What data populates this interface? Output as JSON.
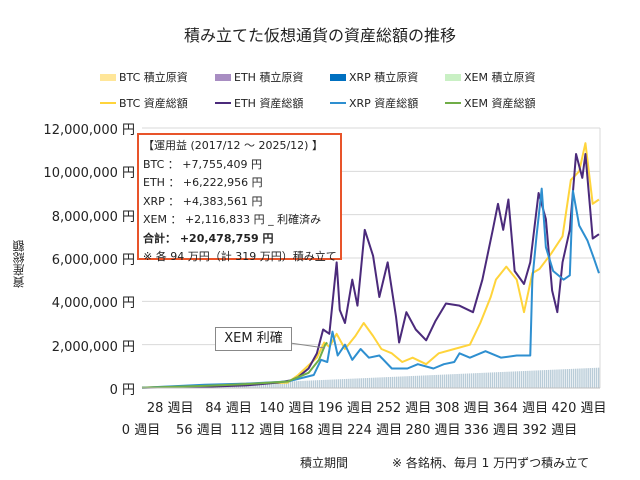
{
  "title": "積み立てた仮想通貨の資産総額の推移",
  "legend": [
    {
      "label": "BTC  積立原資",
      "kind": "bar",
      "color": "#ffe699"
    },
    {
      "label": "ETH  積立原資",
      "kind": "bar",
      "color": "#a88dc2"
    },
    {
      "label": "XRP  積立原資",
      "kind": "bar",
      "color": "#0070c0"
    },
    {
      "label": "XEM  積立原資",
      "kind": "bar",
      "color": "#c9f0c4"
    },
    {
      "label": "BTC  資産総額",
      "kind": "line",
      "color": "#ffd43b"
    },
    {
      "label": "ETH  資産総額",
      "kind": "line",
      "color": "#4b2a7b"
    },
    {
      "label": "XRP  資産総額",
      "kind": "line",
      "color": "#2e8fd0"
    },
    {
      "label": "XEM  資産総額",
      "kind": "line",
      "color": "#70ad47"
    }
  ],
  "annotation": {
    "header": "【運用益 (2017/12 ～ 2025/12) 】",
    "lines": [
      "BTC ： +7,755,409 円",
      "ETH ： +6,222,956 円",
      "XRP ： +4,383,561 円",
      "XEM ： +2,116,833 円 _ 利確済み"
    ],
    "total": "合計： +20,478,759 円",
    "note": "※ 各 94 万円（計 319 万円）積み立て"
  },
  "callout": "XEM 利確",
  "footer": {
    "xlabel": "積立期間",
    "note": "※ 各銘柄、毎月 1 万円ずつ積み立て"
  },
  "chart_data": {
    "type": "line",
    "title": "積み立てた仮想通貨の資産総額の推移",
    "xlabel": "積立期間",
    "ylabel": "資産総額",
    "ylim": [
      0,
      12000000
    ],
    "xlim": [
      0,
      440
    ],
    "grid": true,
    "legend_position": "top",
    "yticks": [
      "0 円",
      "2,000,000 円",
      "4,000,000 円",
      "6,000,000 円",
      "8,000,000 円",
      "10,000,000 円",
      "12,000,000 円"
    ],
    "ytick_values": [
      0,
      2000000,
      4000000,
      6000000,
      8000000,
      10000000,
      12000000
    ],
    "xticks": [
      "0 週目",
      "28 週目",
      "56 週目",
      "84 週目",
      "112 週目",
      "140 週目",
      "168 週目",
      "196 週目",
      "224 週目",
      "252 週目",
      "280 週目",
      "308 週目",
      "336 週目",
      "364 週目",
      "392 週目",
      "420 週目"
    ],
    "principal": {
      "name": "積立原資",
      "color": "#b9ccd8",
      "points": [
        [
          0,
          0
        ],
        [
          439,
          940000
        ]
      ]
    },
    "series": [
      {
        "name": "BTC 資産総額",
        "color": "#ffd43b",
        "points": [
          [
            0,
            20000
          ],
          [
            60,
            120000
          ],
          [
            100,
            200000
          ],
          [
            140,
            250000
          ],
          [
            150,
            600000
          ],
          [
            168,
            1400000
          ],
          [
            175,
            2100000
          ],
          [
            180,
            1900000
          ],
          [
            187,
            2500000
          ],
          [
            195,
            1800000
          ],
          [
            205,
            2400000
          ],
          [
            213,
            3000000
          ],
          [
            222,
            2400000
          ],
          [
            230,
            1800000
          ],
          [
            240,
            1600000
          ],
          [
            250,
            1200000
          ],
          [
            260,
            1400000
          ],
          [
            273,
            1100000
          ],
          [
            285,
            1600000
          ],
          [
            300,
            1800000
          ],
          [
            315,
            2000000
          ],
          [
            325,
            3000000
          ],
          [
            335,
            4200000
          ],
          [
            340,
            5000000
          ],
          [
            350,
            5600000
          ],
          [
            360,
            5000000
          ],
          [
            367,
            3500000
          ],
          [
            375,
            5300000
          ],
          [
            382,
            5500000
          ],
          [
            393,
            6200000
          ],
          [
            404,
            7000000
          ],
          [
            412,
            9600000
          ],
          [
            420,
            10000000
          ],
          [
            426,
            11300000
          ],
          [
            433,
            8500000
          ],
          [
            439,
            8700000
          ]
        ]
      },
      {
        "name": "ETH 資産総額",
        "color": "#4b2a7b",
        "points": [
          [
            0,
            10000
          ],
          [
            60,
            60000
          ],
          [
            100,
            120000
          ],
          [
            130,
            250000
          ],
          [
            143,
            350000
          ],
          [
            150,
            500000
          ],
          [
            160,
            900000
          ],
          [
            168,
            1600000
          ],
          [
            174,
            2700000
          ],
          [
            180,
            2500000
          ],
          [
            187,
            5800000
          ],
          [
            190,
            3600000
          ],
          [
            195,
            3000000
          ],
          [
            202,
            5000000
          ],
          [
            207,
            3800000
          ],
          [
            214,
            7300000
          ],
          [
            222,
            6100000
          ],
          [
            228,
            4200000
          ],
          [
            236,
            5800000
          ],
          [
            244,
            3300000
          ],
          [
            247,
            2100000
          ],
          [
            254,
            3500000
          ],
          [
            263,
            2700000
          ],
          [
            273,
            2200000
          ],
          [
            282,
            3100000
          ],
          [
            292,
            3900000
          ],
          [
            305,
            3800000
          ],
          [
            318,
            3500000
          ],
          [
            327,
            5000000
          ],
          [
            337,
            7300000
          ],
          [
            342,
            8500000
          ],
          [
            347,
            7300000
          ],
          [
            352,
            8700000
          ],
          [
            358,
            5400000
          ],
          [
            367,
            4800000
          ],
          [
            373,
            5800000
          ],
          [
            381,
            9000000
          ],
          [
            388,
            7800000
          ],
          [
            394,
            4500000
          ],
          [
            399,
            3500000
          ],
          [
            404,
            5800000
          ],
          [
            411,
            7300000
          ],
          [
            417,
            10800000
          ],
          [
            423,
            9700000
          ],
          [
            426,
            10800000
          ],
          [
            433,
            6900000
          ],
          [
            439,
            7100000
          ]
        ]
      },
      {
        "name": "XRP 資産総額",
        "color": "#2e8fd0",
        "points": [
          [
            0,
            10000
          ],
          [
            60,
            150000
          ],
          [
            100,
            200000
          ],
          [
            140,
            300000
          ],
          [
            165,
            600000
          ],
          [
            172,
            1300000
          ],
          [
            178,
            1200000
          ],
          [
            183,
            2600000
          ],
          [
            188,
            1500000
          ],
          [
            195,
            2000000
          ],
          [
            202,
            1300000
          ],
          [
            210,
            1800000
          ],
          [
            218,
            1400000
          ],
          [
            228,
            1500000
          ],
          [
            240,
            900000
          ],
          [
            255,
            900000
          ],
          [
            265,
            1100000
          ],
          [
            280,
            900000
          ],
          [
            290,
            1100000
          ],
          [
            300,
            1200000
          ],
          [
            305,
            1600000
          ],
          [
            315,
            1400000
          ],
          [
            330,
            1700000
          ],
          [
            345,
            1400000
          ],
          [
            360,
            1500000
          ],
          [
            373,
            1500000
          ],
          [
            375,
            5000000
          ],
          [
            379,
            7000000
          ],
          [
            384,
            9200000
          ],
          [
            388,
            6500000
          ],
          [
            395,
            5400000
          ],
          [
            405,
            5000000
          ],
          [
            411,
            5200000
          ],
          [
            414,
            9100000
          ],
          [
            420,
            7500000
          ],
          [
            428,
            6800000
          ],
          [
            434,
            6000000
          ],
          [
            439,
            5300000
          ]
        ]
      },
      {
        "name": "XEM 資産総額",
        "color": "#70ad47",
        "points": [
          [
            0,
            10000
          ],
          [
            60,
            100000
          ],
          [
            100,
            180000
          ],
          [
            140,
            300000
          ],
          [
            160,
            700000
          ],
          [
            170,
            1300000
          ],
          [
            176,
            2000000
          ],
          [
            178,
            2100000
          ]
        ]
      }
    ]
  }
}
